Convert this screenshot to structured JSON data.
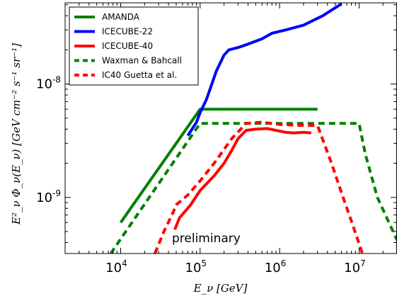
{
  "chart_data": {
    "type": "line",
    "title": "",
    "xlabel": "E_ν  [GeV]",
    "ylabel": "E²_ν Φ_ν(E_ν)  [GeV cm⁻² s⁻¹ sr⁻¹]",
    "xscale": "log",
    "yscale": "log",
    "xlim": [
      2000,
      30000000
    ],
    "ylim": [
      3.2e-10,
      5.2e-08
    ],
    "x_ticks": [
      {
        "value": 10000,
        "base": "10",
        "exp": "4"
      },
      {
        "value": 100000,
        "base": "10",
        "exp": "5"
      },
      {
        "value": 1000000,
        "base": "10",
        "exp": "6"
      },
      {
        "value": 10000000,
        "base": "10",
        "exp": "7"
      }
    ],
    "y_ticks": [
      {
        "value": 1e-09,
        "base": "10",
        "exp": "-9"
      },
      {
        "value": 1e-08,
        "base": "10",
        "exp": "-8"
      }
    ],
    "legend_position": "top-left",
    "annotation": {
      "text": "preliminary",
      "x": 50000,
      "y": 4.4e-10
    },
    "series": [
      {
        "name": "AMANDA",
        "color": "#008000",
        "style": "solid",
        "points": [
          [
            10000,
            6e-10
          ],
          [
            100000,
            6e-09
          ],
          [
            3000000,
            6e-09
          ]
        ]
      },
      {
        "name": "ICECUBE-22",
        "color": "#0000ff",
        "style": "solid",
        "points": [
          [
            70000,
            3.5e-09
          ],
          [
            90000,
            4.6e-09
          ],
          [
            100000,
            5.6e-09
          ],
          [
            120000,
            7.3e-09
          ],
          [
            160000,
            1.3e-08
          ],
          [
            200000,
            1.8e-08
          ],
          [
            230000,
            2e-08
          ],
          [
            300000,
            2.1e-08
          ],
          [
            400000,
            2.25e-08
          ],
          [
            600000,
            2.5e-08
          ],
          [
            800000,
            2.8e-08
          ],
          [
            1200000,
            3e-08
          ],
          [
            2000000,
            3.3e-08
          ],
          [
            3500000,
            4e-08
          ],
          [
            6000000,
            5.1e-08
          ]
        ]
      },
      {
        "name": "ICECUBE-40",
        "color": "#ff0000",
        "style": "solid",
        "points": [
          [
            48000,
            5.2e-10
          ],
          [
            55000,
            6.6e-10
          ],
          [
            75000,
            8.5e-10
          ],
          [
            100000,
            1.15e-09
          ],
          [
            150000,
            1.55e-09
          ],
          [
            200000,
            2e-09
          ],
          [
            250000,
            2.6e-09
          ],
          [
            300000,
            3.3e-09
          ],
          [
            380000,
            3.9e-09
          ],
          [
            500000,
            4e-09
          ],
          [
            700000,
            4.05e-09
          ],
          [
            900000,
            3.9e-09
          ],
          [
            1200000,
            3.75e-09
          ],
          [
            1500000,
            3.7e-09
          ],
          [
            2000000,
            3.75e-09
          ],
          [
            2500000,
            3.7e-09
          ]
        ]
      },
      {
        "name": "Waxman & Bahcall",
        "color": "#008000",
        "style": "dashed",
        "points": [
          [
            7500,
            3.2e-10
          ],
          [
            10000,
            4.3e-10
          ],
          [
            100000,
            4.5e-09
          ],
          [
            10000000,
            4.5e-09
          ],
          [
            12000000,
            2.4e-09
          ],
          [
            17000000,
            1e-09
          ],
          [
            30000000,
            4.2e-10
          ]
        ]
      },
      {
        "name": "IC40 Guetta et al.",
        "color": "#ff0000",
        "style": "dashed",
        "points": [
          [
            27000,
            3.2e-10
          ],
          [
            35000,
            5e-10
          ],
          [
            45000,
            7.2e-10
          ],
          [
            50000,
            8.6e-10
          ],
          [
            70000,
            1.05e-09
          ],
          [
            100000,
            1.4e-09
          ],
          [
            150000,
            2e-09
          ],
          [
            250000,
            3.3e-09
          ],
          [
            380000,
            4.5e-09
          ],
          [
            600000,
            4.6e-09
          ],
          [
            1000000,
            4.4e-09
          ],
          [
            2000000,
            4.3e-09
          ],
          [
            3000000,
            4.3e-09
          ],
          [
            4500000,
            2e-09
          ],
          [
            6000000,
            1.1e-09
          ],
          [
            8000000,
            6.2e-10
          ],
          [
            11000000,
            3.2e-10
          ]
        ]
      }
    ]
  }
}
